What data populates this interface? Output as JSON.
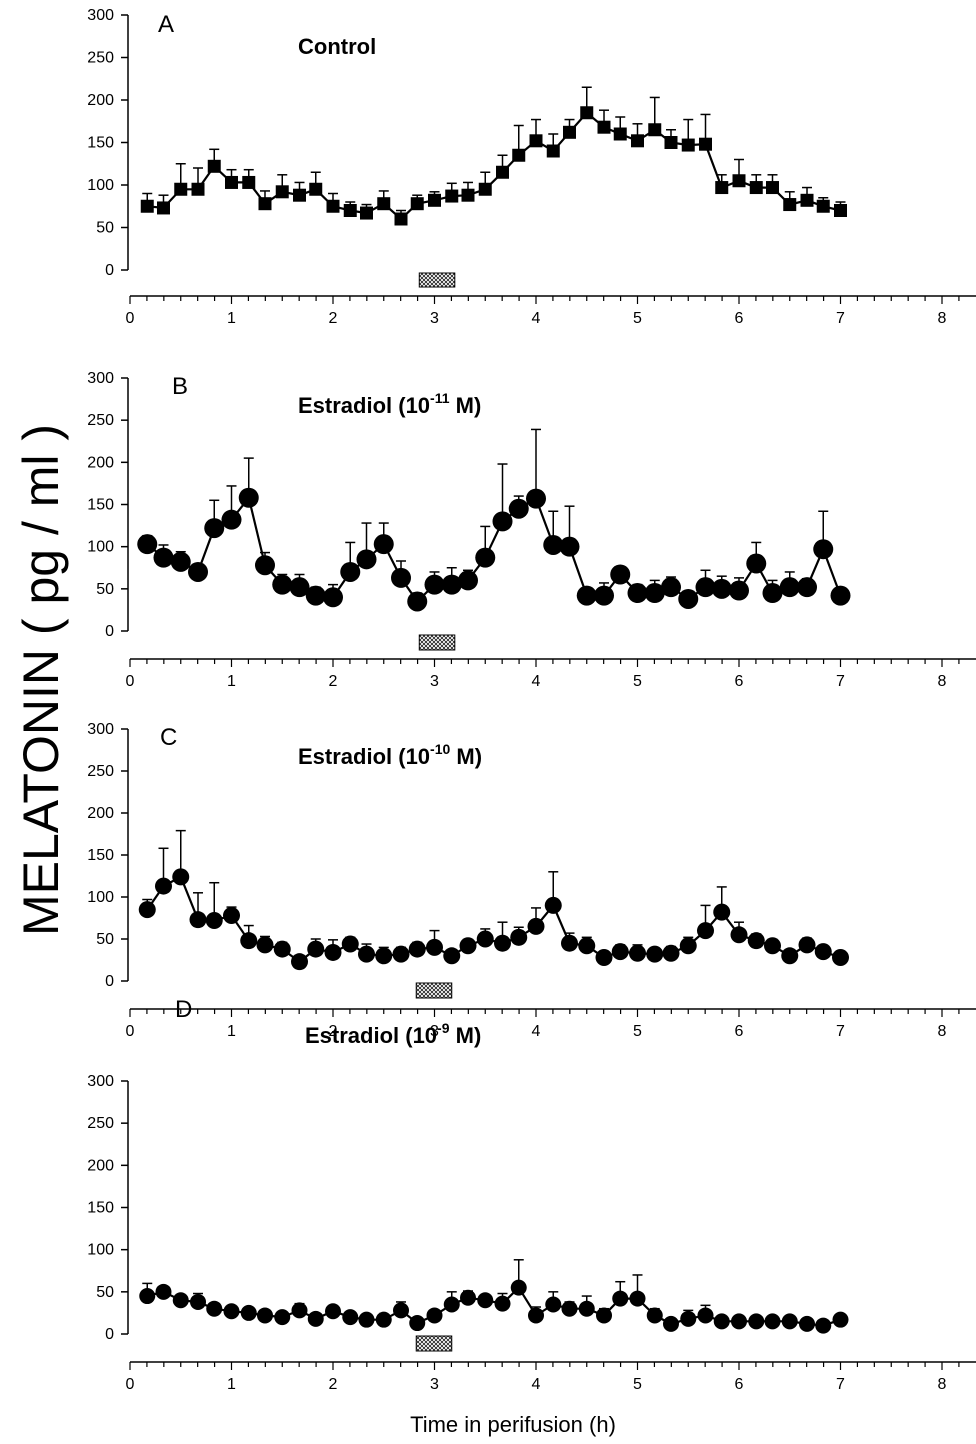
{
  "chart_data": {
    "type": "line",
    "ylabel": "MELATONIN ( pg / ml )",
    "xlabel": "Time in perifusion (h)",
    "panels": [
      {
        "letter": "A",
        "title_main": "Control",
        "title_exp": "",
        "title_tail": "",
        "marker": "square",
        "stim_bar": [
          2.85,
          3.2
        ],
        "x": [
          0.17,
          0.33,
          0.5,
          0.67,
          0.83,
          1.0,
          1.17,
          1.33,
          1.5,
          1.67,
          1.83,
          2.0,
          2.17,
          2.33,
          2.5,
          2.67,
          2.83,
          3.0,
          3.17,
          3.33,
          3.5,
          3.67,
          3.83,
          4.0,
          4.17,
          4.33,
          4.5,
          4.67,
          4.83,
          5.0,
          5.17,
          5.33,
          5.5,
          5.67,
          5.83,
          6.0,
          6.17,
          6.33,
          6.5,
          6.67,
          6.83,
          7.0
        ],
        "y": [
          75,
          73,
          95,
          95,
          122,
          103,
          103,
          78,
          92,
          88,
          95,
          75,
          70,
          67,
          78,
          60,
          78,
          82,
          87,
          88,
          95,
          115,
          135,
          152,
          140,
          162,
          185,
          168,
          160,
          152,
          165,
          150,
          147,
          148,
          97,
          105,
          97,
          97,
          77,
          82,
          75,
          70
        ],
        "err": [
          15,
          15,
          30,
          25,
          20,
          15,
          15,
          15,
          20,
          15,
          20,
          15,
          10,
          10,
          15,
          10,
          10,
          10,
          15,
          15,
          20,
          20,
          35,
          25,
          20,
          15,
          30,
          20,
          20,
          20,
          38,
          15,
          30,
          35,
          15,
          25,
          15,
          15,
          15,
          15,
          10,
          10
        ]
      },
      {
        "letter": "B",
        "title_main": "Estradiol (10",
        "title_exp": "-11",
        "title_tail": " M)",
        "marker": "circle",
        "stim_bar": [
          2.85,
          3.2
        ],
        "x": [
          0.17,
          0.33,
          0.5,
          0.67,
          0.83,
          1.0,
          1.17,
          1.33,
          1.5,
          1.67,
          1.83,
          2.0,
          2.17,
          2.33,
          2.5,
          2.67,
          2.83,
          3.0,
          3.17,
          3.33,
          3.5,
          3.67,
          3.83,
          4.0,
          4.17,
          4.33,
          4.5,
          4.67,
          4.83,
          5.0,
          5.17,
          5.33,
          5.5,
          5.67,
          5.83,
          6.0,
          6.17,
          6.33,
          6.5,
          6.67,
          6.83,
          7.0
        ],
        "y": [
          103,
          87,
          82,
          70,
          122,
          132,
          158,
          78,
          55,
          52,
          42,
          40,
          70,
          85,
          103,
          63,
          35,
          55,
          55,
          60,
          87,
          130,
          145,
          157,
          102,
          100,
          42,
          42,
          67,
          45,
          45,
          52,
          38,
          52,
          50,
          48,
          80,
          45,
          52,
          52,
          97,
          42
        ],
        "err": [
          10,
          15,
          12,
          8,
          33,
          40,
          47,
          15,
          12,
          15,
          10,
          15,
          35,
          43,
          25,
          20,
          10,
          15,
          20,
          12,
          37,
          68,
          15,
          82,
          40,
          48,
          8,
          15,
          8,
          10,
          15,
          12,
          8,
          20,
          15,
          15,
          25,
          15,
          18,
          10,
          45,
          5
        ]
      },
      {
        "letter": "C",
        "title_main": "Estradiol (10",
        "title_exp": "-10",
        "title_tail": " M)",
        "marker": "circle",
        "stim_bar": [
          2.82,
          3.17
        ],
        "x": [
          0.17,
          0.33,
          0.5,
          0.67,
          0.83,
          1.0,
          1.17,
          1.33,
          1.5,
          1.67,
          1.83,
          2.0,
          2.17,
          2.33,
          2.5,
          2.67,
          2.83,
          3.0,
          3.17,
          3.33,
          3.5,
          3.67,
          3.83,
          4.0,
          4.17,
          4.33,
          4.5,
          4.67,
          4.83,
          5.0,
          5.17,
          5.33,
          5.5,
          5.67,
          5.83,
          6.0,
          6.17,
          6.33,
          6.5,
          6.67,
          6.83,
          7.0
        ],
        "y": [
          85,
          113,
          124,
          73,
          72,
          78,
          48,
          43,
          38,
          23,
          38,
          34,
          44,
          32,
          30,
          32,
          38,
          40,
          30,
          42,
          50,
          45,
          52,
          65,
          90,
          45,
          42,
          28,
          35,
          33,
          32,
          33,
          42,
          60,
          82,
          55,
          48,
          42,
          30,
          43,
          35,
          28
        ],
        "err": [
          12,
          45,
          55,
          32,
          45,
          10,
          18,
          10,
          8,
          5,
          12,
          15,
          8,
          12,
          10,
          8,
          8,
          20,
          5,
          5,
          12,
          25,
          12,
          22,
          40,
          12,
          10,
          5,
          8,
          10,
          5,
          8,
          10,
          30,
          30,
          15,
          8,
          5,
          5,
          8,
          5,
          5
        ]
      },
      {
        "letter": "D",
        "title_main": "Estradiol (10",
        "title_exp": "-9",
        "title_tail": " M)",
        "marker": "circle",
        "stim_bar": [
          2.82,
          3.17
        ],
        "x": [
          0.17,
          0.33,
          0.5,
          0.67,
          0.83,
          1.0,
          1.17,
          1.33,
          1.5,
          1.67,
          1.83,
          2.0,
          2.17,
          2.33,
          2.5,
          2.67,
          2.83,
          3.0,
          3.17,
          3.33,
          3.5,
          3.67,
          3.83,
          4.0,
          4.17,
          4.33,
          4.5,
          4.67,
          4.83,
          5.0,
          5.17,
          5.33,
          5.5,
          5.67,
          5.83,
          6.0,
          6.17,
          6.33,
          6.5,
          6.67,
          6.83,
          7.0
        ],
        "y": [
          45,
          50,
          40,
          38,
          30,
          27,
          25,
          22,
          20,
          28,
          18,
          27,
          20,
          17,
          17,
          28,
          13,
          22,
          35,
          43,
          40,
          36,
          55,
          22,
          35,
          30,
          30,
          22,
          42,
          42,
          22,
          12,
          18,
          22,
          15,
          15,
          15,
          15,
          15,
          12,
          10,
          17
        ],
        "err": [
          15,
          5,
          5,
          10,
          5,
          5,
          5,
          5,
          5,
          8,
          5,
          5,
          5,
          5,
          5,
          10,
          5,
          5,
          15,
          8,
          5,
          12,
          33,
          10,
          15,
          8,
          15,
          8,
          20,
          28,
          8,
          5,
          10,
          12,
          5,
          5,
          5,
          5,
          5,
          5,
          5,
          5
        ]
      }
    ],
    "x_axis": {
      "range": [
        0,
        8
      ],
      "ticks": [
        "0",
        "1",
        "2",
        "3",
        "4",
        "5",
        "6",
        "7",
        "8"
      ]
    },
    "y_axis": {
      "range": [
        0,
        300
      ],
      "ticks": [
        "0",
        "50",
        "100",
        "150",
        "200",
        "250",
        "300"
      ]
    },
    "legend": "none",
    "grid": false,
    "colors": {
      "ink": "#000000",
      "stim_fill": "#ffffff"
    }
  }
}
